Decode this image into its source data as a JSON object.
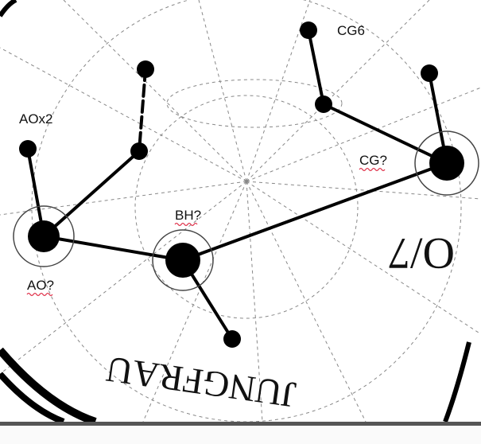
{
  "labels": [
    "CG6",
    "AOx2",
    "CG?",
    "BH?",
    "AO?"
  ],
  "plate_text": "JUNGFRAU",
  "plate_number": "O/7"
}
